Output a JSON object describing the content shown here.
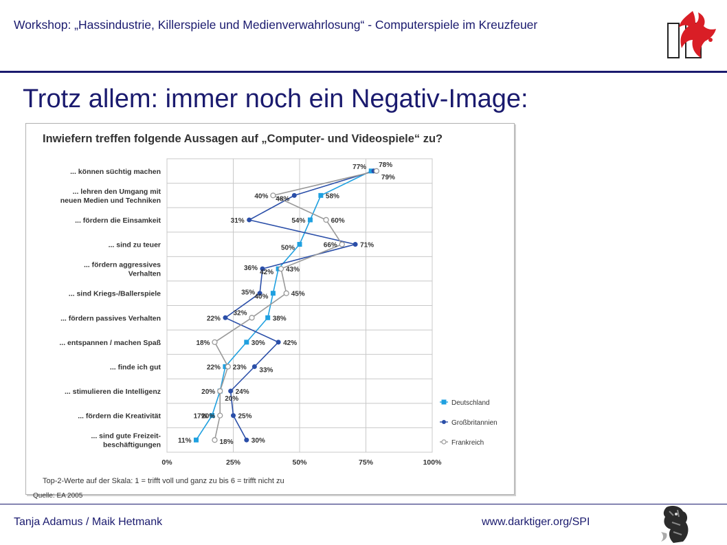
{
  "header": {
    "workshop_title": "Workshop: „Hassindustrie, Killerspiele und Medienverwahrlosung“ - Computerspiele im Kreuzfeuer"
  },
  "slide": {
    "title": "Trotz allem: immer noch ein Negativ-Image:"
  },
  "chart_data": {
    "type": "line",
    "title": "Inwiefern treffen folgende Aussagen auf „Computer- und Videospiele“ zu?",
    "orientation": "horizontal",
    "categories": [
      "... können süchtig machen",
      "... lehren den Umgang mit\nneuen Medien und Techniken",
      "... fördern die Einsamkeit",
      "... sind zu teuer",
      "... fördern aggressives\nVerhalten",
      "... sind Kriegs-/Ballerspiele",
      "... fördern passives Verhalten",
      "... entspannen / machen Spaß",
      "... finde ich gut",
      "... stimulieren die Intelligenz",
      "... fördern die Kreativität",
      "... sind gute Freizeit-\nbeschäftigungen"
    ],
    "series": [
      {
        "name": "Deutschland",
        "color": "#1fa0e0",
        "marker": "square",
        "values": [
          77,
          58,
          54,
          50,
          42,
          40,
          38,
          30,
          22,
          20,
          17,
          11
        ]
      },
      {
        "name": "Großbritannien",
        "color": "#2a4ea8",
        "marker": "circle",
        "values": [
          78,
          48,
          31,
          71,
          36,
          35,
          22,
          42,
          33,
          24,
          25,
          30
        ]
      },
      {
        "name": "Frankreich",
        "color": "#999999",
        "marker": "open-circle",
        "values": [
          79,
          40,
          60,
          66,
          43,
          45,
          32,
          18,
          23,
          20,
          20,
          18
        ]
      }
    ],
    "xticks": [
      "0%",
      "25%",
      "50%",
      "75%",
      "100%"
    ],
    "xlim": [
      0,
      100
    ],
    "xlabel": "Top-2-Werte auf der Skala: 1 = trifft voll und ganz zu bis 6 = trifft nicht zu",
    "grid": true,
    "legend_position": "right",
    "source": "Quelle: EA 2005"
  },
  "footer": {
    "authors": "Tanja Adamus / Maik Hetmank",
    "url": "www.darktiger.org/SPI"
  },
  "icons": {
    "top_logo": "red-bird-logo-icon",
    "bottom_logo": "tiger-mascot-icon"
  }
}
